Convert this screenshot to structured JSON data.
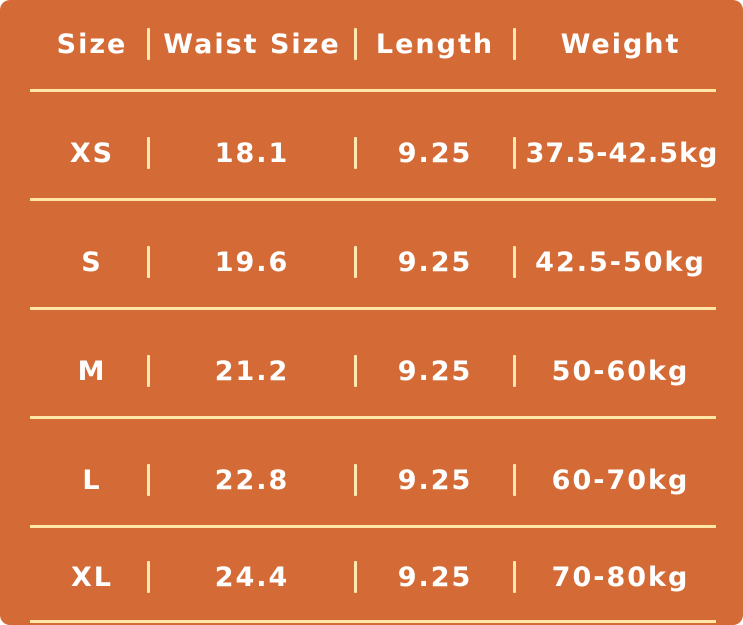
{
  "table": {
    "headers": [
      "Size",
      "Waist Size",
      "Length",
      "Weight"
    ],
    "rows": [
      {
        "size": "XS",
        "waist": "18.1",
        "length": "9.25",
        "weight": "37.5-42.5kg"
      },
      {
        "size": "S",
        "waist": "19.6",
        "length": "9.25",
        "weight": "42.5-50kg"
      },
      {
        "size": "M",
        "waist": "21.2",
        "length": "9.25",
        "weight": "50-60kg"
      },
      {
        "size": "L",
        "waist": "22.8",
        "length": "9.25",
        "weight": "60-70kg"
      },
      {
        "size": "XL",
        "waist": "24.4",
        "length": "9.25",
        "weight": "70-80kg"
      }
    ]
  },
  "colors": {
    "background": "#d46b36",
    "text": "#ffffff",
    "divider": "#ffe6a6"
  }
}
